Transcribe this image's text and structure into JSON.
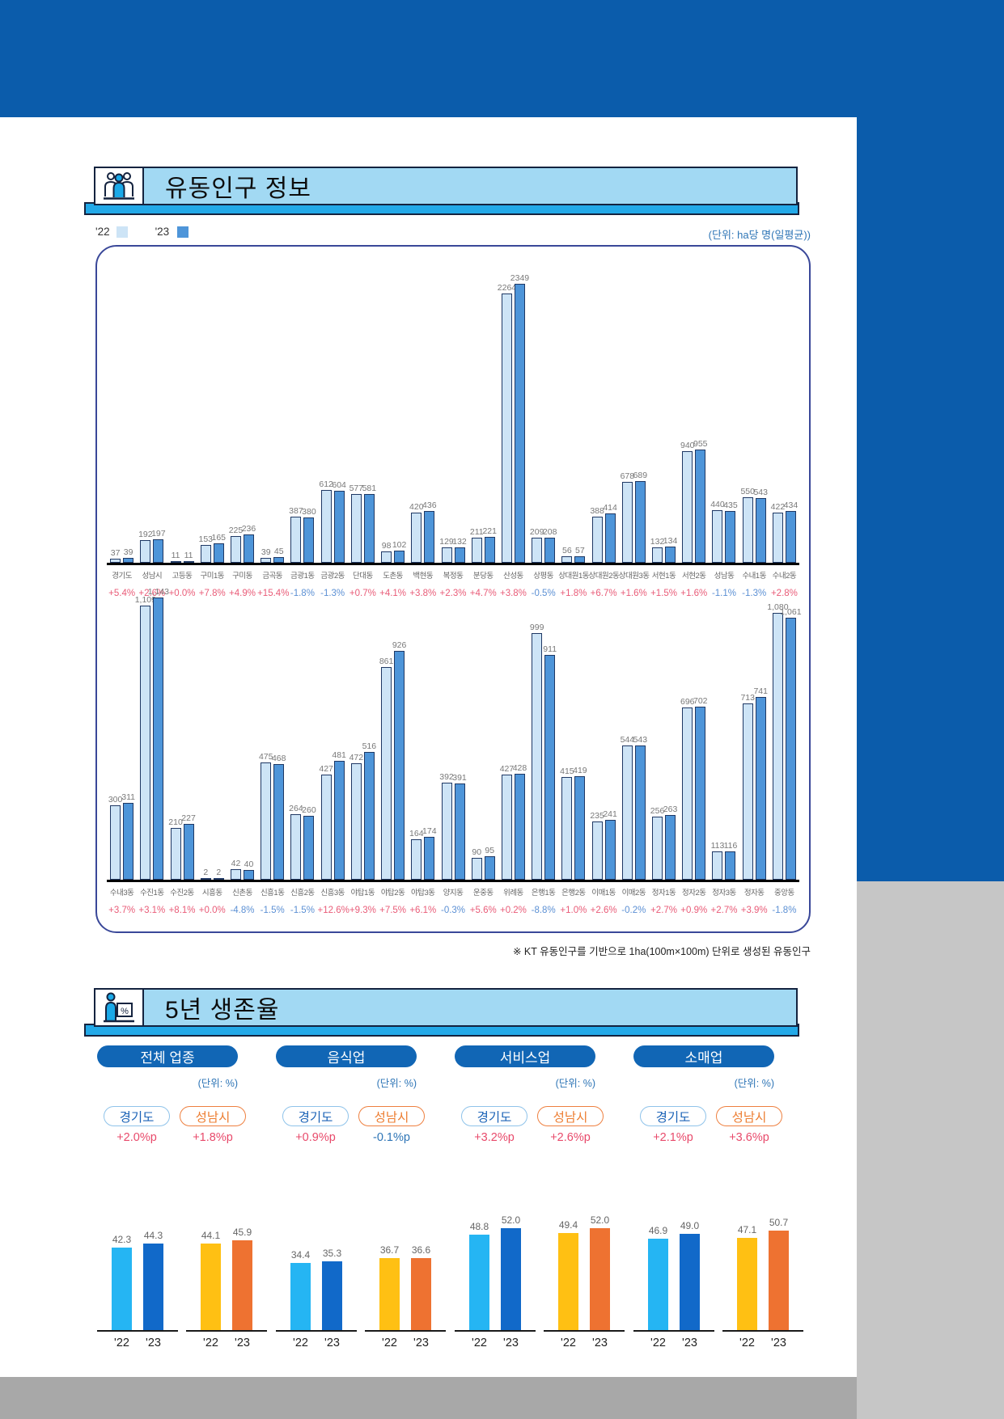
{
  "colors": {
    "band_blue": "#0b5cab",
    "header_fill": "#a2d9f3",
    "header_shadow": "#23a9e8",
    "bar_22": "#cde4f6",
    "bar_23": "#4e95d9",
    "pct_positive": "#e95c78",
    "pct_negative": "#5c90d4",
    "unit_blue": "#2e75b6",
    "gyeonggi_22": "#25b5f3",
    "gyeonggi_23": "#1169c9",
    "seongnam_22": "#ffc013",
    "seongnam_23": "#ee7231"
  },
  "section1": {
    "title": "유동인구 정보",
    "legend22": "'22",
    "legend23": "'23",
    "unit": "(단위: ha당 명(일평균))",
    "footnote": "※ KT 유동인구를 기반으로 1ha(100m×100m) 단위로 생성된 유동인구"
  },
  "section2": {
    "title": "5년 생존율"
  },
  "chart_data": [
    {
      "type": "bar",
      "legend": [
        "'22",
        "'23"
      ],
      "unit": "ha당 명(일평균)",
      "categories": [
        "경기도",
        "성남시",
        "고등동",
        "구미1동",
        "구미동",
        "금곡동",
        "금광1동",
        "금광2동",
        "단대동",
        "도촌동",
        "백현동",
        "복정동",
        "분당동",
        "산성동",
        "상평동",
        "상대원1동",
        "상대원2동",
        "상대원3동",
        "서현1동",
        "서현2동",
        "성남동",
        "수내1동",
        "수내2동"
      ],
      "series": [
        {
          "name": "22",
          "values": [
            37,
            192,
            11,
            153,
            225,
            39,
            387,
            612,
            577,
            98,
            420,
            129,
            211,
            2264,
            209,
            56,
            388,
            678,
            132,
            940,
            440,
            550,
            422
          ],
          "display": [
            "37",
            "192",
            "11",
            "153",
            "225",
            "39",
            "387",
            "612",
            "577",
            "98",
            "420",
            "129",
            "211",
            "2264",
            "209",
            "56",
            "388",
            "678",
            "132",
            "940",
            "440",
            "550",
            "422"
          ]
        },
        {
          "name": "23",
          "values": [
            39,
            197,
            11,
            165,
            236,
            45,
            380,
            604,
            581,
            102,
            436,
            132,
            221,
            2349,
            208,
            57,
            414,
            689,
            134,
            955,
            435,
            543,
            434
          ],
          "display": [
            "39",
            "197",
            "11",
            "165",
            "236",
            "45",
            "380",
            "604",
            "581",
            "102",
            "436",
            "132",
            "221",
            "2349",
            "208",
            "57",
            "414",
            "689",
            "134",
            "955",
            "435",
            "543",
            "434"
          ]
        }
      ],
      "pct_change": [
        "+5.4%",
        "+2.6%",
        "+0.0%",
        "+7.8%",
        "+4.9%",
        "+15.4%",
        "-1.8%",
        "-1.3%",
        "+0.7%",
        "+4.1%",
        "+3.8%",
        "+2.3%",
        "+4.7%",
        "+3.8%",
        "-0.5%",
        "+1.8%",
        "+6.7%",
        "+1.6%",
        "+1.5%",
        "+1.6%",
        "-1.1%",
        "-1.3%",
        "+2.8%"
      ]
    },
    {
      "type": "bar",
      "legend": [
        "'22",
        "'23"
      ],
      "unit": "ha당 명(일평균)",
      "categories": [
        "수내3동",
        "수진1동",
        "수진2동",
        "시흥동",
        "신촌동",
        "신흥1동",
        "신흥2동",
        "신흥3동",
        "야탑1동",
        "야탑2동",
        "야탑3동",
        "양지동",
        "운중동",
        "위례동",
        "은행1동",
        "은행2동",
        "이매1동",
        "이매2동",
        "정자1동",
        "정자2동",
        "정자3동",
        "정자동",
        "중앙동"
      ],
      "series": [
        {
          "name": "22",
          "values": [
            300,
            1109,
            210,
            2,
            42,
            475,
            264,
            427,
            472,
            861,
            164,
            392,
            90,
            427,
            999,
            415,
            235,
            544,
            256,
            696,
            113,
            713,
            1080
          ],
          "display": [
            "300",
            "1,109",
            "210",
            "2",
            "42",
            "475",
            "264",
            "427",
            "472",
            "861",
            "164",
            "392",
            "90",
            "427",
            "999",
            "415",
            "235",
            "544",
            "256",
            "696",
            "113",
            "713",
            "1,080"
          ]
        },
        {
          "name": "23",
          "values": [
            311,
            1143,
            227,
            2,
            40,
            468,
            260,
            481,
            516,
            926,
            174,
            391,
            95,
            428,
            911,
            419,
            241,
            543,
            263,
            702,
            116,
            741,
            1061
          ],
          "display": [
            "311",
            "1,143",
            "227",
            "2",
            "40",
            "468",
            "260",
            "481",
            "516",
            "926",
            "174",
            "391",
            "95",
            "428",
            "911",
            "419",
            "241",
            "543",
            "263",
            "702",
            "116",
            "741",
            "1,061"
          ]
        }
      ],
      "pct_change": [
        "+3.7%",
        "+3.1%",
        "+8.1%",
        "+0.0%",
        "-4.8%",
        "-1.5%",
        "-1.5%",
        "+12.6%",
        "+9.3%",
        "+7.5%",
        "+6.1%",
        "-0.3%",
        "+5.6%",
        "+0.2%",
        "-8.8%",
        "+1.0%",
        "+2.6%",
        "-0.2%",
        "+2.7%",
        "+0.9%",
        "+2.7%",
        "+3.9%",
        "-1.8%"
      ]
    },
    {
      "type": "bar",
      "title": "전체 업종",
      "unit": "(단위: %)",
      "years": [
        "'22",
        "'23"
      ],
      "groups": [
        {
          "region": "경기도",
          "change": "+2.0%p",
          "values": [
            42.3,
            44.3
          ],
          "colors": [
            "#25b5f3",
            "#1169c9"
          ]
        },
        {
          "region": "성남시",
          "change": "+1.8%p",
          "values": [
            44.1,
            45.9
          ],
          "colors": [
            "#ffc013",
            "#ee7231"
          ]
        }
      ]
    },
    {
      "type": "bar",
      "title": "음식업",
      "unit": "(단위: %)",
      "years": [
        "'22",
        "'23"
      ],
      "groups": [
        {
          "region": "경기도",
          "change": "+0.9%p",
          "values": [
            34.4,
            35.3
          ],
          "colors": [
            "#25b5f3",
            "#1169c9"
          ]
        },
        {
          "region": "성남시",
          "change": "-0.1%p",
          "values": [
            36.7,
            36.6
          ],
          "colors": [
            "#ffc013",
            "#ee7231"
          ]
        }
      ]
    },
    {
      "type": "bar",
      "title": "서비스업",
      "unit": "(단위: %)",
      "years": [
        "'22",
        "'23"
      ],
      "groups": [
        {
          "region": "경기도",
          "change": "+3.2%p",
          "values": [
            48.8,
            52.0
          ],
          "colors": [
            "#25b5f3",
            "#1169c9"
          ]
        },
        {
          "region": "성남시",
          "change": "+2.6%p",
          "values": [
            49.4,
            52.0
          ],
          "colors": [
            "#ffc013",
            "#ee7231"
          ]
        }
      ]
    },
    {
      "type": "bar",
      "title": "소매업",
      "unit": "(단위: %)",
      "years": [
        "'22",
        "'23"
      ],
      "groups": [
        {
          "region": "경기도",
          "change": "+2.1%p",
          "values": [
            46.9,
            49.0
          ],
          "colors": [
            "#25b5f3",
            "#1169c9"
          ]
        },
        {
          "region": "성남시",
          "change": "+3.6%p",
          "values": [
            47.1,
            50.7
          ],
          "colors": [
            "#ffc013",
            "#ee7231"
          ]
        }
      ]
    }
  ]
}
